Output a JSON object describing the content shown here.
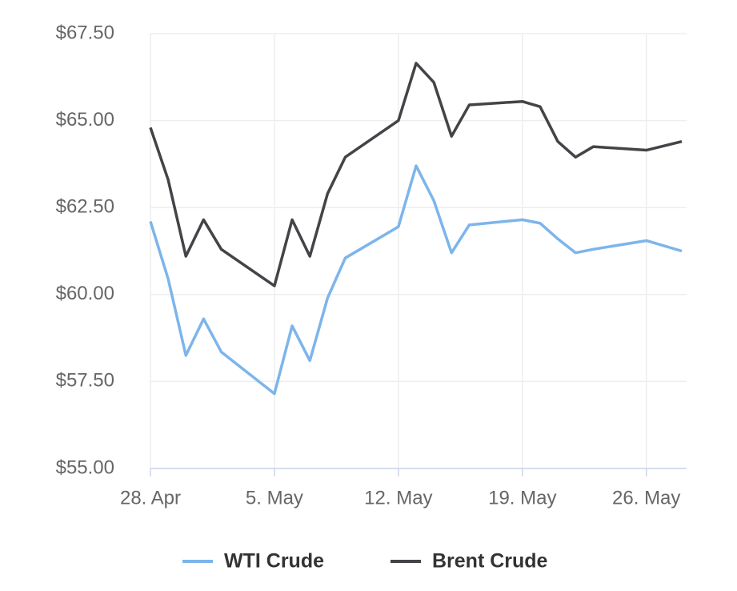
{
  "chart_data": {
    "type": "line",
    "x": [
      "04-28",
      "04-29",
      "04-30",
      "05-01",
      "05-02",
      "05-05",
      "05-06",
      "05-07",
      "05-08",
      "05-09",
      "05-12",
      "05-13",
      "05-14",
      "05-15",
      "05-16",
      "05-19",
      "05-20",
      "05-21",
      "05-22",
      "05-23",
      "05-26",
      "05-28"
    ],
    "series": [
      {
        "name": "WTI Crude",
        "color": "#7cb5ec",
        "values": [
          62.1,
          60.45,
          58.25,
          59.3,
          58.35,
          57.15,
          59.1,
          58.1,
          59.9,
          61.05,
          61.95,
          63.7,
          62.7,
          61.2,
          62.0,
          62.15,
          62.05,
          61.6,
          61.2,
          61.3,
          61.55,
          61.25
        ]
      },
      {
        "name": "Brent Crude",
        "color": "#434348",
        "values": [
          64.8,
          63.3,
          61.1,
          62.15,
          61.3,
          60.25,
          62.15,
          61.1,
          62.9,
          63.95,
          65.0,
          66.65,
          66.1,
          64.55,
          65.45,
          65.55,
          65.4,
          64.4,
          63.95,
          64.25,
          64.15,
          64.4
        ]
      }
    ],
    "xlim": [
      "04-28",
      "05-28"
    ],
    "xticks": [
      {
        "value": "04-28",
        "label": "28. Apr"
      },
      {
        "value": "05-05",
        "label": "5. May"
      },
      {
        "value": "05-12",
        "label": "12. May"
      },
      {
        "value": "05-19",
        "label": "19. May"
      },
      {
        "value": "05-26",
        "label": "26. May"
      }
    ],
    "ylim": [
      55,
      67.5
    ],
    "yticks": [
      {
        "value": 55,
        "label": "$55.00"
      },
      {
        "value": 57.5,
        "label": "$57.50"
      },
      {
        "value": 60,
        "label": "$60.00"
      },
      {
        "value": 62.5,
        "label": "$62.50"
      },
      {
        "value": 65,
        "label": "$65.00"
      },
      {
        "value": 67.5,
        "label": "$67.50"
      }
    ],
    "grid": true,
    "legend": "bottom"
  }
}
